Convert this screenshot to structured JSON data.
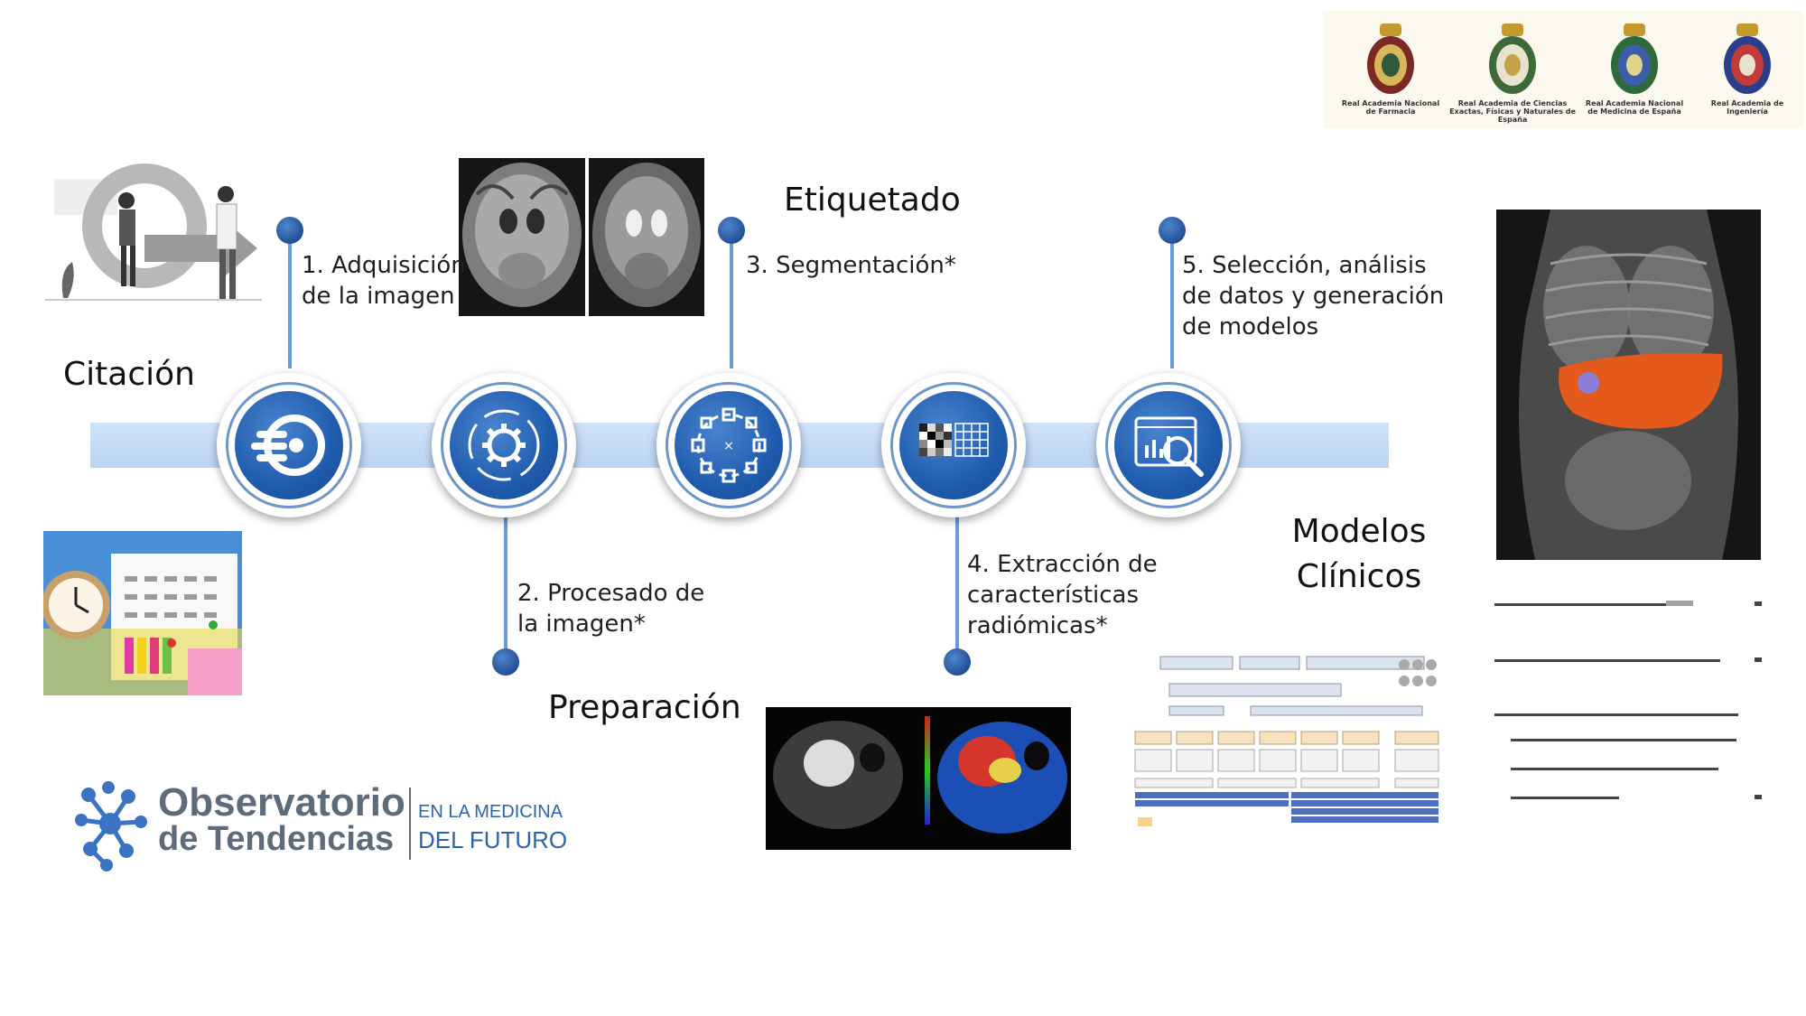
{
  "phases": {
    "citacion": "Citación",
    "etiquetado": "Etiquetado",
    "preparacion": "Preparación",
    "modelos_line1": "Modelos",
    "modelos_line2": "Clínicos"
  },
  "steps": {
    "s1_line1": "1. Adquisición",
    "s1_line2": "de la imagen",
    "s2_line1": "2. Procesado de",
    "s2_line2": "la imagen*",
    "s3": "3. Segmentación*",
    "s4_line1": "4. Extracción de",
    "s4_line2": "características",
    "s4_line3": "radiómicas*",
    "s5_line1": "5. Selección, análisis",
    "s5_line2": "de datos y generación",
    "s5_line3": "de modelos"
  },
  "node_icons": [
    "citation-flow-icon",
    "processing-gear-icon",
    "segmentation-target-icon",
    "feature-matrix-icon",
    "data-analysis-icon"
  ],
  "academies": [
    {
      "line1": "Real Academia Nacional",
      "line2": "de Farmacia"
    },
    {
      "line1": "Real Academia de Ciencias",
      "line2": "Exactas, Físicas y Naturales de España"
    },
    {
      "line1": "Real Academia Nacional",
      "line2": "de Medicina de España"
    },
    {
      "line1": "Real Academia de Ingeniería",
      "line2": ""
    }
  ],
  "logo": {
    "line1": "Observatorio",
    "line2": "de Tendencias",
    "tag1": "EN LA MEDICINA",
    "tag2": "DEL FUTURO"
  },
  "colors": {
    "accent": "#1f5cae",
    "band": "#c7dcf5",
    "logo_grey": "#5e6b7a",
    "logo_blue": "#2a64b2"
  }
}
